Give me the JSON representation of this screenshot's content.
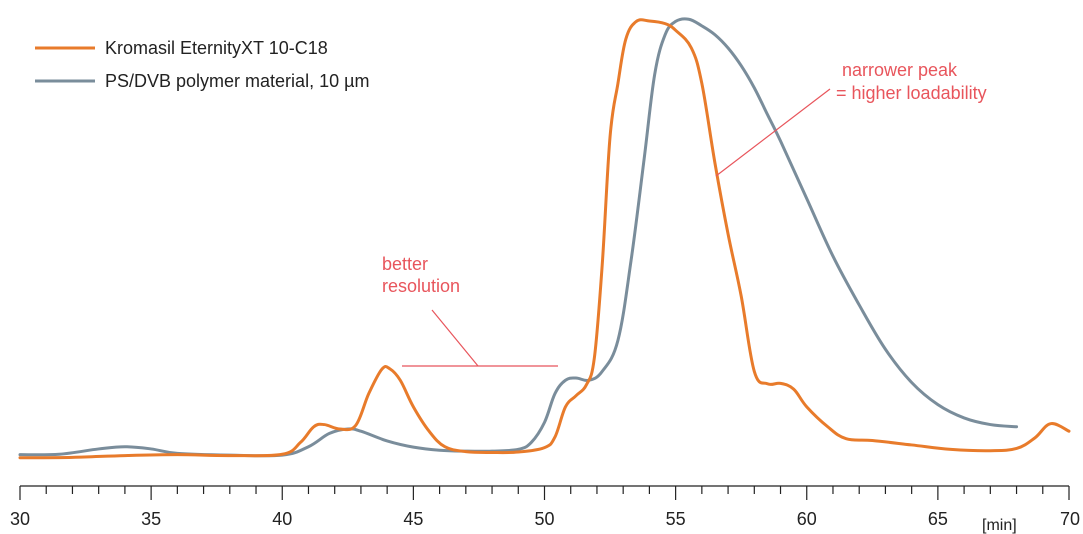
{
  "chart_data": {
    "type": "line",
    "title": "",
    "xlabel": "[min]",
    "ylabel": "",
    "xlim": [
      30,
      70
    ],
    "ylim": [
      0,
      100
    ],
    "grid": false,
    "legend_position": "top-left",
    "xticks": {
      "major": [
        30,
        35,
        40,
        45,
        50,
        55,
        60,
        65,
        70
      ],
      "major_labels": [
        "30",
        "35",
        "40",
        "45",
        "50",
        "55",
        "60",
        "65",
        "70"
      ],
      "minor_step": 1
    },
    "series": [
      {
        "name": "Kromasil EternityXT 10-C18",
        "color": "#e87b2b",
        "x": [
          30,
          32,
          34,
          36,
          38,
          40,
          40.7,
          41.2,
          41.6,
          42.2,
          42.8,
          43.3,
          43.8,
          44.1,
          44.5,
          45,
          45.6,
          46.2,
          47,
          48,
          49,
          50,
          50.4,
          50.8,
          51.2,
          51.6,
          51.9,
          52.2,
          52.5,
          52.8,
          53.1,
          53.5,
          54,
          54.6,
          55,
          55.6,
          56,
          56.5,
          57,
          57.5,
          58,
          58.5,
          59,
          59.5,
          60,
          60.8,
          61.5,
          62.5,
          64,
          65.5,
          67,
          68,
          68.7,
          69.3,
          70
        ],
        "y": [
          0.5,
          0.6,
          1,
          1.2,
          1,
          1.3,
          4,
          7.5,
          8,
          7,
          7.8,
          15,
          20.5,
          20.6,
          18,
          12,
          6.5,
          3,
          1.9,
          1.7,
          1.8,
          2.8,
          5.2,
          12,
          14.5,
          17,
          23,
          44,
          73,
          85,
          95,
          99,
          99.1,
          98.5,
          97,
          93,
          85,
          67,
          51,
          37,
          20,
          17.2,
          17.3,
          16,
          12,
          7.5,
          4.8,
          4.4,
          3.4,
          2.4,
          2.1,
          2.6,
          5,
          8.2,
          6.5
        ]
      },
      {
        "name": "PS/DVB polymer material, 10 µm",
        "color": "#7a8d9b",
        "x": [
          30,
          31.5,
          33,
          34,
          35,
          36,
          38,
          40,
          41,
          41.8,
          42.5,
          43,
          44,
          45,
          46,
          47,
          48,
          49,
          49.5,
          50,
          50.4,
          50.8,
          51.2,
          51.7,
          52.2,
          52.8,
          53.3,
          53.8,
          54.2,
          54.6,
          55,
          55.5,
          56,
          56.5,
          57,
          57.5,
          58,
          58.5,
          59,
          60,
          61,
          62,
          63,
          64,
          65,
          66,
          67,
          68
        ],
        "y": [
          1.2,
          1.3,
          2.5,
          3,
          2.5,
          1.5,
          1.1,
          1.1,
          3,
          6,
          7,
          6.5,
          4.3,
          2.9,
          2.2,
          2,
          2,
          2.4,
          4,
          8.5,
          15,
          18,
          18.5,
          18,
          20,
          27,
          45,
          68,
          87,
          96,
          99,
          99.5,
          98,
          96,
          93,
          89,
          84,
          78,
          72,
          59,
          46,
          35,
          25,
          17.5,
          12.5,
          9.5,
          8,
          7.5
        ]
      }
    ],
    "annotations": [
      {
        "lines": [
          "better",
          "resolution"
        ],
        "color": "#e8555c"
      },
      {
        "lines": [
          "narrower peak",
          "= higher loadability"
        ],
        "color": "#e8555c"
      }
    ]
  }
}
